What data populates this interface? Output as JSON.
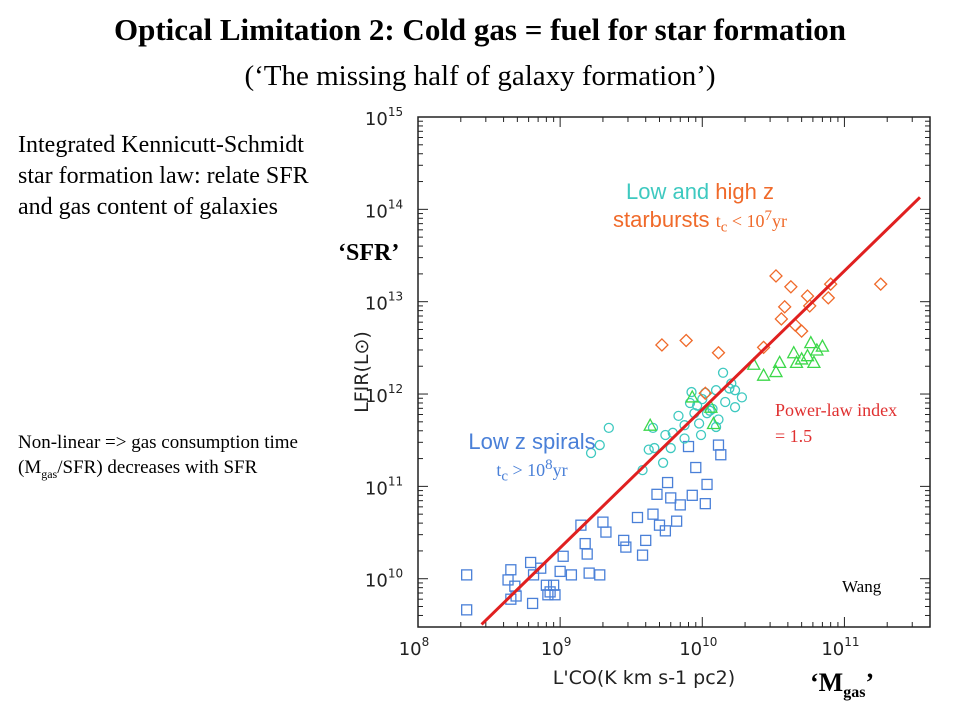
{
  "slide": {
    "title": "Optical Limitation 2: Cold gas = fuel for star formation",
    "subtitle": "(‘The missing half of galaxy formation’)",
    "left_text_1": "Integrated Kennicutt-Schmidt star formation law: relate SFR and gas content of galaxies",
    "left_text_2_a": "Non-linear => gas consumption time (M",
    "left_text_2_sub": "gas",
    "left_text_2_b": "/SFR) decreases with SFR",
    "sfr_label": "‘SFR’",
    "mgas_label_a": "‘M",
    "mgas_label_sub": "gas",
    "mgas_label_b": "’",
    "starburst_label_1_a": "Low and ",
    "starburst_label_1_b": "high z",
    "starburst_label_2": "starbursts",
    "starburst_tc": "t",
    "starburst_tc_sub": "c",
    "starburst_tc_rest": " < 10",
    "starburst_tc_sup": "7",
    "starburst_tc_unit": "yr",
    "spirals_label": "Low z spirals",
    "spirals_tc": "t",
    "spirals_tc_sub": "c",
    "spirals_tc_rest": " > 10",
    "spirals_tc_sup": "8",
    "spirals_tc_unit": "yr",
    "powerlaw_label": "Power-law index = 1.5",
    "credit": "Wang",
    "colors": {
      "blue": "#4a80d8",
      "cyan": "#3ec9c0",
      "green": "#3cd84a",
      "orange": "#f06a2a",
      "red": "#e02020"
    }
  },
  "chart_data": {
    "type": "scatter",
    "xlabel": "L'CO(K km s-1 pc2)",
    "ylabel": "LFIR(L⊙)",
    "x_scale": "log",
    "y_scale": "log",
    "xlim": [
      100000000,
      400000000000
    ],
    "ylim": [
      3000000000,
      1000000000000000
    ],
    "x_ticks": [
      "10^8",
      "10^9",
      "10^10",
      "10^11"
    ],
    "y_ticks": [
      "10^10",
      "10^11",
      "10^12",
      "10^13",
      "10^14",
      "10^15"
    ],
    "series": [
      {
        "marker": "square",
        "color": "#4a80d8",
        "points": [
          [
            220000000.0,
            11000000000.0
          ],
          [
            220000000.0,
            4600000000.0
          ],
          [
            450000000.0,
            12500000000.0
          ],
          [
            430000000.0,
            9700000000.0
          ],
          [
            490000000.0,
            6500000000.0
          ],
          [
            450000000.0,
            6000000000.0
          ],
          [
            480000000.0,
            8300000000.0
          ],
          [
            620000000.0,
            15000000000.0
          ],
          [
            650000000.0,
            11000000000.0
          ],
          [
            640000000.0,
            5400000000.0
          ],
          [
            730000000.0,
            13000000000.0
          ],
          [
            800000000.0,
            8500000000.0
          ],
          [
            850000000.0,
            7200000000.0
          ],
          [
            820000000.0,
            6700000000.0
          ],
          [
            900000000.0,
            8500000000.0
          ],
          [
            920000000.0,
            6700000000.0
          ],
          [
            1000000000.0,
            12000000000.0
          ],
          [
            1050000000.0,
            17500000000.0
          ],
          [
            1200000000.0,
            11000000000.0
          ],
          [
            1400000000.0,
            38000000000.0
          ],
          [
            1500000000.0,
            24000000000.0
          ],
          [
            1550000000.0,
            18500000000.0
          ],
          [
            1600000000.0,
            11500000000.0
          ],
          [
            1900000000.0,
            11000000000.0
          ],
          [
            2000000000.0,
            41000000000.0
          ],
          [
            2100000000.0,
            32000000000.0
          ],
          [
            2800000000.0,
            26000000000.0
          ],
          [
            2900000000.0,
            22000000000.0
          ],
          [
            3500000000.0,
            46000000000.0
          ],
          [
            4000000000.0,
            26000000000.0
          ],
          [
            3800000000.0,
            18000000000.0
          ],
          [
            4500000000.0,
            50000000000.0
          ],
          [
            4800000000.0,
            82000000000.0
          ],
          [
            5000000000.0,
            38000000000.0
          ],
          [
            5500000000.0,
            33000000000.0
          ],
          [
            5700000000.0,
            110000000000.0
          ],
          [
            6000000000.0,
            75000000000.0
          ],
          [
            6600000000.0,
            42000000000.0
          ],
          [
            7000000000.0,
            63000000000.0
          ],
          [
            8000000000.0,
            270000000000.0
          ],
          [
            8500000000.0,
            80000000000.0
          ],
          [
            9000000000.0,
            160000000000.0
          ],
          [
            10500000000.0,
            65000000000.0
          ],
          [
            10800000000.0,
            105000000000.0
          ],
          [
            13000000000.0,
            280000000000.0
          ],
          [
            13500000000.0,
            220000000000.0
          ]
        ]
      },
      {
        "marker": "circle",
        "color": "#3ec9c0",
        "points": [
          [
            4200000000.0,
            250000000000.0
          ],
          [
            4500000000.0,
            430000000000.0
          ],
          [
            4600000000.0,
            260000000000.0
          ],
          [
            5300000000.0,
            180000000000.0
          ],
          [
            5500000000.0,
            360000000000.0
          ],
          [
            6000000000.0,
            260000000000.0
          ],
          [
            6200000000.0,
            380000000000.0
          ],
          [
            6800000000.0,
            580000000000.0
          ],
          [
            7500000000.0,
            460000000000.0
          ],
          [
            7500000000.0,
            330000000000.0
          ],
          [
            8200000000.0,
            800000000000.0
          ],
          [
            8800000000.0,
            620000000000.0
          ],
          [
            9200000000.0,
            750000000000.0
          ],
          [
            9500000000.0,
            480000000000.0
          ],
          [
            9800000000.0,
            360000000000.0
          ],
          [
            10000000000.0,
            880000000000.0
          ],
          [
            10500000000.0,
            1030000000000.0
          ],
          [
            10800000000.0,
            620000000000.0
          ],
          [
            11300000000.0,
            660000000000.0
          ],
          [
            11800000000.0,
            690000000000.0
          ],
          [
            12500000000.0,
            440000000000.0
          ],
          [
            13000000000.0,
            530000000000.0
          ],
          [
            14000000000.0,
            1700000000000.0
          ],
          [
            14500000000.0,
            820000000000.0
          ],
          [
            15500000000.0,
            1150000000000.0
          ],
          [
            16000000000.0,
            1300000000000.0
          ],
          [
            17000000000.0,
            720000000000.0
          ],
          [
            19000000000.0,
            920000000000.0
          ],
          [
            1650000000.0,
            230000000000.0
          ],
          [
            1900000000.0,
            280000000000.0
          ],
          [
            3800000000.0,
            150000000000.0
          ],
          [
            2200000000.0,
            430000000000.0
          ],
          [
            8400000000.0,
            1050000000000.0
          ],
          [
            12500000000.0,
            1100000000000.0
          ],
          [
            17000000000.0,
            1100000000000.0
          ]
        ]
      },
      {
        "marker": "triangle",
        "color": "#3cd84a",
        "points": [
          [
            4300000000.0,
            460000000000.0
          ],
          [
            8500000000.0,
            930000000000.0
          ],
          [
            11500000000.0,
            720000000000.0
          ],
          [
            12000000000.0,
            480000000000.0
          ],
          [
            23000000000.0,
            2100000000000.0
          ],
          [
            27000000000.0,
            1600000000000.0
          ],
          [
            33000000000.0,
            1750000000000.0
          ],
          [
            35000000000.0,
            2200000000000.0
          ],
          [
            44000000000.0,
            2800000000000.0
          ],
          [
            46000000000.0,
            2200000000000.0
          ],
          [
            50000000000.0,
            2400000000000.0
          ],
          [
            55000000000.0,
            2600000000000.0
          ],
          [
            58000000000.0,
            3600000000000.0
          ],
          [
            64000000000.0,
            3000000000000.0
          ],
          [
            61000000000.0,
            2200000000000.0
          ],
          [
            70000000000.0,
            3300000000000.0
          ]
        ]
      },
      {
        "marker": "diamond",
        "color": "#f06a2a",
        "points": [
          [
            5200000000.0,
            3400000000000.0
          ],
          [
            7700000000.0,
            3800000000000.0
          ],
          [
            13000000000.0,
            2800000000000.0
          ],
          [
            27000000000.0,
            3200000000000.0
          ],
          [
            36000000000.0,
            6500000000000.0
          ],
          [
            38000000000.0,
            8800000000000.0
          ],
          [
            45000000000.0,
            5600000000000.0
          ],
          [
            57000000000.0,
            9000000000000.0
          ],
          [
            55000000000.0,
            11500000000000.0
          ],
          [
            50000000000.0,
            4800000000000.0
          ],
          [
            77000000000.0,
            11000000000000.0
          ],
          [
            80000000000.0,
            15500000000000.0
          ],
          [
            180000000000.0,
            15500000000000.0
          ],
          [
            10500000000.0,
            1020000000000.0
          ],
          [
            33000000000.0,
            19000000000000.0
          ],
          [
            42000000000.0,
            14500000000000.0
          ]
        ]
      }
    ],
    "fit_line": {
      "label": "Power-law index = 1.5",
      "x": [
        280000000.0,
        340000000000.0
      ],
      "y": [
        3200000000.0,
        135000000000000.0
      ],
      "color": "#e02020"
    }
  }
}
